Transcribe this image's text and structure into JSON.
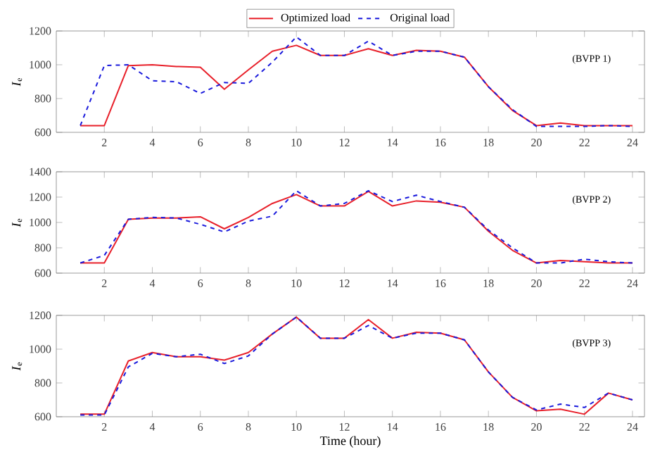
{
  "chart_data": [
    {
      "type": "line",
      "x": [
        1,
        2,
        3,
        4,
        5,
        6,
        7,
        8,
        9,
        10,
        11,
        12,
        13,
        14,
        15,
        16,
        17,
        18,
        19,
        20,
        21,
        22,
        23,
        24
      ],
      "xlim": [
        0,
        24.5
      ],
      "xticks": [
        2,
        4,
        6,
        8,
        10,
        12,
        14,
        16,
        18,
        20,
        22,
        24
      ],
      "ylim": [
        600,
        1200
      ],
      "yticks": [
        600,
        800,
        1000,
        1200
      ],
      "ylabel": "*I*$_{e}$",
      "annotations": [
        "(BVPP 1)"
      ],
      "legend": "top",
      "marker": "none",
      "series": [
        {
          "name": "Optimized load",
          "color": "#e8202a",
          "line_style": "solid",
          "values": [
            640,
            640,
            995,
            1000,
            990,
            985,
            855,
            970,
            1080,
            1115,
            1055,
            1055,
            1095,
            1055,
            1085,
            1080,
            1045,
            870,
            730,
            640,
            655,
            640,
            640,
            640
          ]
        },
        {
          "name": "Original load",
          "color": "#1a1adc",
          "line_style": "dashed",
          "values": [
            640,
            995,
            1000,
            905,
            900,
            830,
            895,
            890,
            1015,
            1165,
            1055,
            1055,
            1140,
            1055,
            1080,
            1080,
            1045,
            870,
            735,
            635,
            635,
            635,
            640,
            635
          ]
        }
      ]
    },
    {
      "type": "line",
      "x": [
        1,
        2,
        3,
        4,
        5,
        6,
        7,
        8,
        9,
        10,
        11,
        12,
        13,
        14,
        15,
        16,
        17,
        18,
        19,
        20,
        21,
        22,
        23,
        24
      ],
      "xlim": [
        0,
        24.5
      ],
      "xticks": [
        2,
        4,
        6,
        8,
        10,
        12,
        14,
        16,
        18,
        20,
        22,
        24
      ],
      "ylim": [
        600,
        1400
      ],
      "yticks": [
        600,
        800,
        1000,
        1200,
        1400
      ],
      "ylabel": "*I*$_{e}$",
      "annotations": [
        "(BVPP 2)"
      ],
      "marker": "none",
      "series": [
        {
          "color": "#e8202a",
          "line_style": "solid",
          "values": [
            680,
            680,
            1025,
            1035,
            1035,
            1045,
            950,
            1040,
            1150,
            1220,
            1130,
            1130,
            1245,
            1130,
            1170,
            1160,
            1120,
            930,
            780,
            680,
            700,
            690,
            680,
            680
          ]
        },
        {
          "color": "#1a1adc",
          "line_style": "dashed",
          "values": [
            680,
            740,
            1025,
            1040,
            1035,
            985,
            925,
            1010,
            1050,
            1250,
            1130,
            1150,
            1250,
            1165,
            1215,
            1165,
            1120,
            940,
            800,
            680,
            680,
            710,
            690,
            680
          ]
        }
      ]
    },
    {
      "type": "line",
      "x": [
        1,
        2,
        3,
        4,
        5,
        6,
        7,
        8,
        9,
        10,
        11,
        12,
        13,
        14,
        15,
        16,
        17,
        18,
        19,
        20,
        21,
        22,
        23,
        24
      ],
      "xlim": [
        0,
        24.5
      ],
      "xticks": [
        2,
        4,
        6,
        8,
        10,
        12,
        14,
        16,
        18,
        20,
        22,
        24
      ],
      "ylim": [
        600,
        1200
      ],
      "yticks": [
        600,
        800,
        1000,
        1200
      ],
      "ylabel": "*I*$_{e}$",
      "xlabel": "Time (hour)",
      "annotations": [
        "(BVPP 3)"
      ],
      "marker": "none",
      "series": [
        {
          "color": "#e8202a",
          "line_style": "solid",
          "values": [
            615,
            615,
            930,
            980,
            955,
            955,
            935,
            980,
            1090,
            1190,
            1065,
            1065,
            1175,
            1065,
            1100,
            1095,
            1055,
            865,
            715,
            635,
            645,
            615,
            740,
            700
          ]
        },
        {
          "color": "#1a1adc",
          "line_style": "dashed",
          "values": [
            610,
            610,
            895,
            975,
            955,
            970,
            915,
            960,
            1090,
            1190,
            1065,
            1065,
            1140,
            1065,
            1095,
            1095,
            1055,
            865,
            715,
            640,
            675,
            655,
            740,
            700
          ]
        }
      ]
    }
  ]
}
